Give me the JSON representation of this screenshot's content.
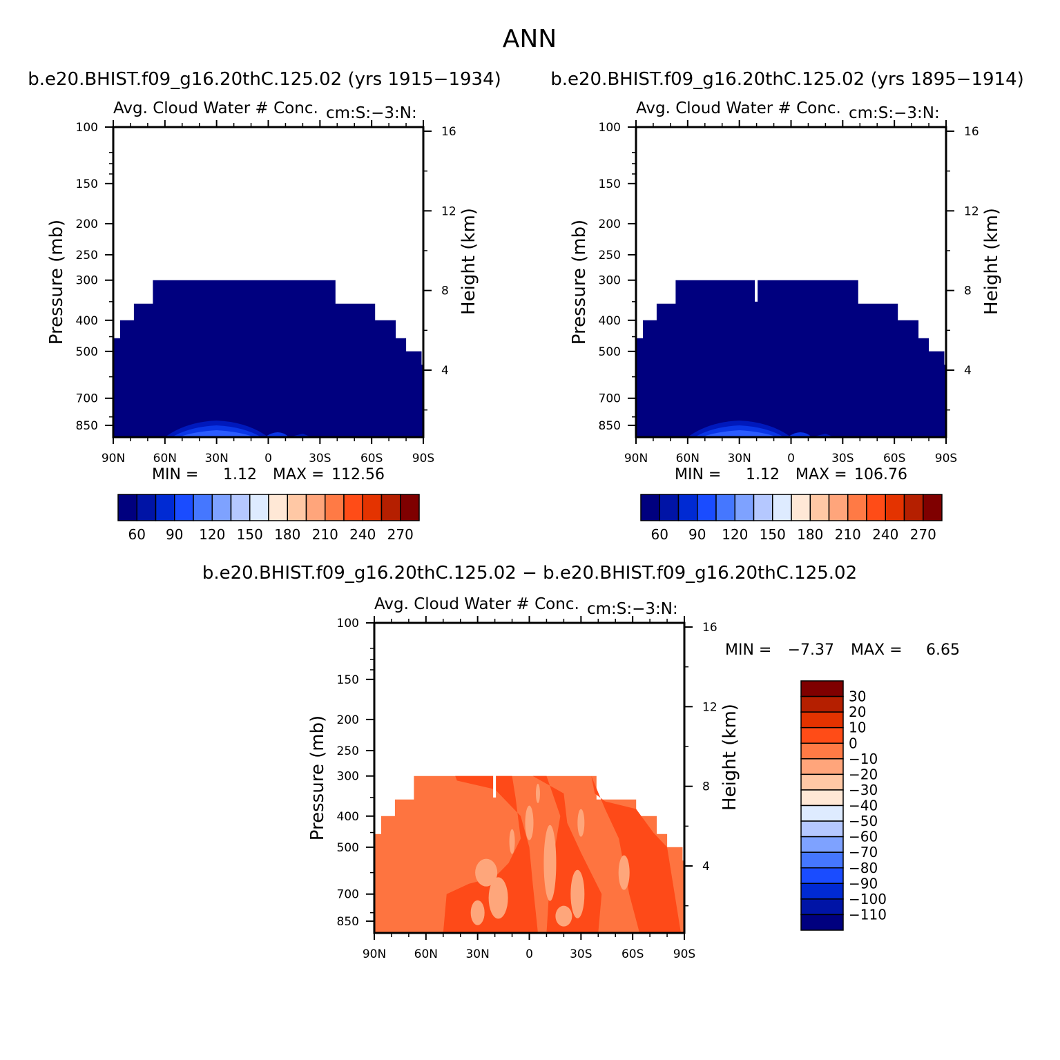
{
  "page_title": "ANN",
  "colors": {
    "field_fill": "#00007f",
    "diff_main": "#fe7440",
    "diff_secondary": "#fe4a18",
    "diff_light": "#fea67b"
  },
  "chart_data": [
    {
      "id": "panel-1",
      "type": "heatmap",
      "header": "b.e20.BHIST.f09_g16.20thC.125.02 (yrs 1915−1934)",
      "title_left": "Avg. Cloud Water # Conc.",
      "title_right": "cm:S:−3:N:",
      "xlabel": "",
      "ylabel": "Pressure (mb)",
      "ylabel_right": "Height (km)",
      "x_ticks": [
        "90N",
        "60N",
        "30N",
        "0",
        "30S",
        "60S",
        "90S"
      ],
      "xlim": [
        90,
        -90
      ],
      "y_ticks": [
        "100",
        "150",
        "200",
        "250",
        "300",
        "400",
        "500",
        "700",
        "850"
      ],
      "ylim": [
        100,
        925
      ],
      "height_ticks": [
        "16",
        "12",
        "8",
        "4"
      ],
      "stats": {
        "min_label": "MIN =",
        "min_value": "1.12",
        "max_label": "MAX =",
        "max_value": "112.56"
      },
      "colorbar": {
        "orientation": "horizontal",
        "colors": [
          "#00007f",
          "#0014a6",
          "#002ad3",
          "#1a4cff",
          "#4577ff",
          "#7ea2ff",
          "#b5c8ff",
          "#deebff",
          "#ffe8d6",
          "#ffc8a5",
          "#ffa57b",
          "#ff7a45",
          "#ff4c17",
          "#e43300",
          "#b51f00",
          "#7f0000"
        ],
        "labels": [
          "60",
          "90",
          "120",
          "150",
          "180",
          "210",
          "240",
          "270"
        ]
      },
      "gap": false
    },
    {
      "id": "panel-2",
      "type": "heatmap",
      "header": "b.e20.BHIST.f09_g16.20thC.125.02 (yrs 1895−1914)",
      "title_left": "Avg. Cloud Water # Conc.",
      "title_right": "cm:S:−3:N:",
      "xlabel": "",
      "ylabel": "Pressure (mb)",
      "ylabel_right": "Height (km)",
      "x_ticks": [
        "90N",
        "60N",
        "30N",
        "0",
        "30S",
        "60S",
        "90S"
      ],
      "xlim": [
        90,
        -90
      ],
      "y_ticks": [
        "100",
        "150",
        "200",
        "250",
        "300",
        "400",
        "500",
        "700",
        "850"
      ],
      "ylim": [
        100,
        925
      ],
      "height_ticks": [
        "16",
        "12",
        "8",
        "4"
      ],
      "stats": {
        "min_label": "MIN =",
        "min_value": "1.12",
        "max_label": "MAX =",
        "max_value": "106.76"
      },
      "colorbar": {
        "orientation": "horizontal",
        "colors": [
          "#00007f",
          "#0014a6",
          "#002ad3",
          "#1a4cff",
          "#4577ff",
          "#7ea2ff",
          "#b5c8ff",
          "#deebff",
          "#ffe8d6",
          "#ffc8a5",
          "#ffa57b",
          "#ff7a45",
          "#ff4c17",
          "#e43300",
          "#b51f00",
          "#7f0000"
        ],
        "labels": [
          "60",
          "90",
          "120",
          "150",
          "180",
          "210",
          "240",
          "270"
        ]
      },
      "gap": true
    },
    {
      "id": "panel-diff",
      "type": "heatmap",
      "header": "b.e20.BHIST.f09_g16.20thC.125.02 − b.e20.BHIST.f09_g16.20thC.125.02",
      "title_left": "Avg. Cloud Water # Conc.",
      "title_right": "cm:S:−3:N:",
      "xlabel": "",
      "ylabel": "Pressure (mb)",
      "ylabel_right": "Height (km)",
      "x_ticks": [
        "90N",
        "60N",
        "30N",
        "0",
        "30S",
        "60S",
        "90S"
      ],
      "xlim": [
        90,
        -90
      ],
      "y_ticks": [
        "100",
        "150",
        "200",
        "250",
        "300",
        "400",
        "500",
        "700",
        "850"
      ],
      "ylim": [
        100,
        925
      ],
      "height_ticks": [
        "16",
        "12",
        "8",
        "4"
      ],
      "stats": {
        "min_label": "MIN =",
        "min_value": "−7.37",
        "max_label": "MAX =",
        "max_value": "6.65"
      },
      "colorbar": {
        "orientation": "vertical",
        "colors_top_to_bottom": [
          "#7f0000",
          "#b51f00",
          "#e43300",
          "#ff4c17",
          "#ff7a45",
          "#ffa57b",
          "#ffc8a5",
          "#ffe8d6",
          "#deebff",
          "#b5c8ff",
          "#7ea2ff",
          "#4577ff",
          "#1a4cff",
          "#002ad3",
          "#0014a6",
          "#00007f"
        ],
        "labels_top_to_bottom": [
          "30",
          "20",
          "10",
          "0",
          "−10",
          "−20",
          "−30",
          "−40",
          "−50",
          "−60",
          "−70",
          "−80",
          "−90",
          "−100",
          "−110"
        ]
      },
      "gap": true
    }
  ]
}
